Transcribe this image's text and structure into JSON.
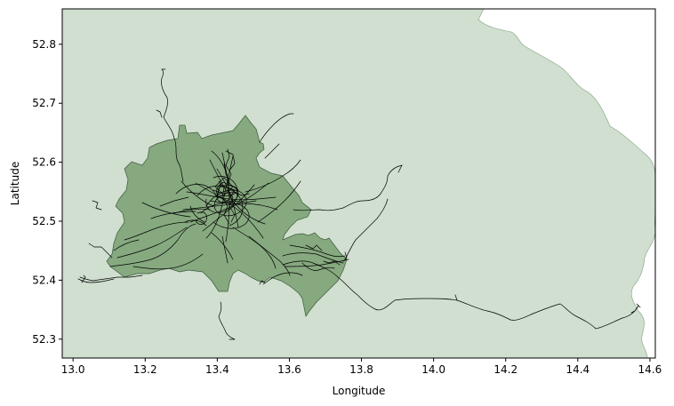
{
  "map": {
    "xlabel": "Longitude",
    "ylabel": "Latitude",
    "xlim": [
      12.97,
      14.615
    ],
    "ylim": [
      52.268,
      52.86
    ],
    "x_ticks": [
      {
        "value": 13.0,
        "label": "13.0"
      },
      {
        "value": 13.2,
        "label": "13.2"
      },
      {
        "value": 13.4,
        "label": "13.4"
      },
      {
        "value": 13.6,
        "label": "13.6"
      },
      {
        "value": 13.8,
        "label": "13.8"
      },
      {
        "value": 14.0,
        "label": "14.0"
      },
      {
        "value": 14.2,
        "label": "14.2"
      },
      {
        "value": 14.4,
        "label": "14.4"
      },
      {
        "value": 14.6,
        "label": "14.6"
      }
    ],
    "y_ticks": [
      {
        "value": 52.3,
        "label": "52.3"
      },
      {
        "value": 52.4,
        "label": "52.4"
      },
      {
        "value": 52.5,
        "label": "52.5"
      },
      {
        "value": 52.6,
        "label": "52.6"
      },
      {
        "value": 52.7,
        "label": "52.7"
      },
      {
        "value": 52.8,
        "label": "52.8"
      }
    ],
    "colors": {
      "region_fill": "#d0dfd0",
      "region_edge": "#7fa07f",
      "city_fill": "#86a97f",
      "city_edge": "#3c5a3a",
      "tracks": "#000000"
    }
  }
}
